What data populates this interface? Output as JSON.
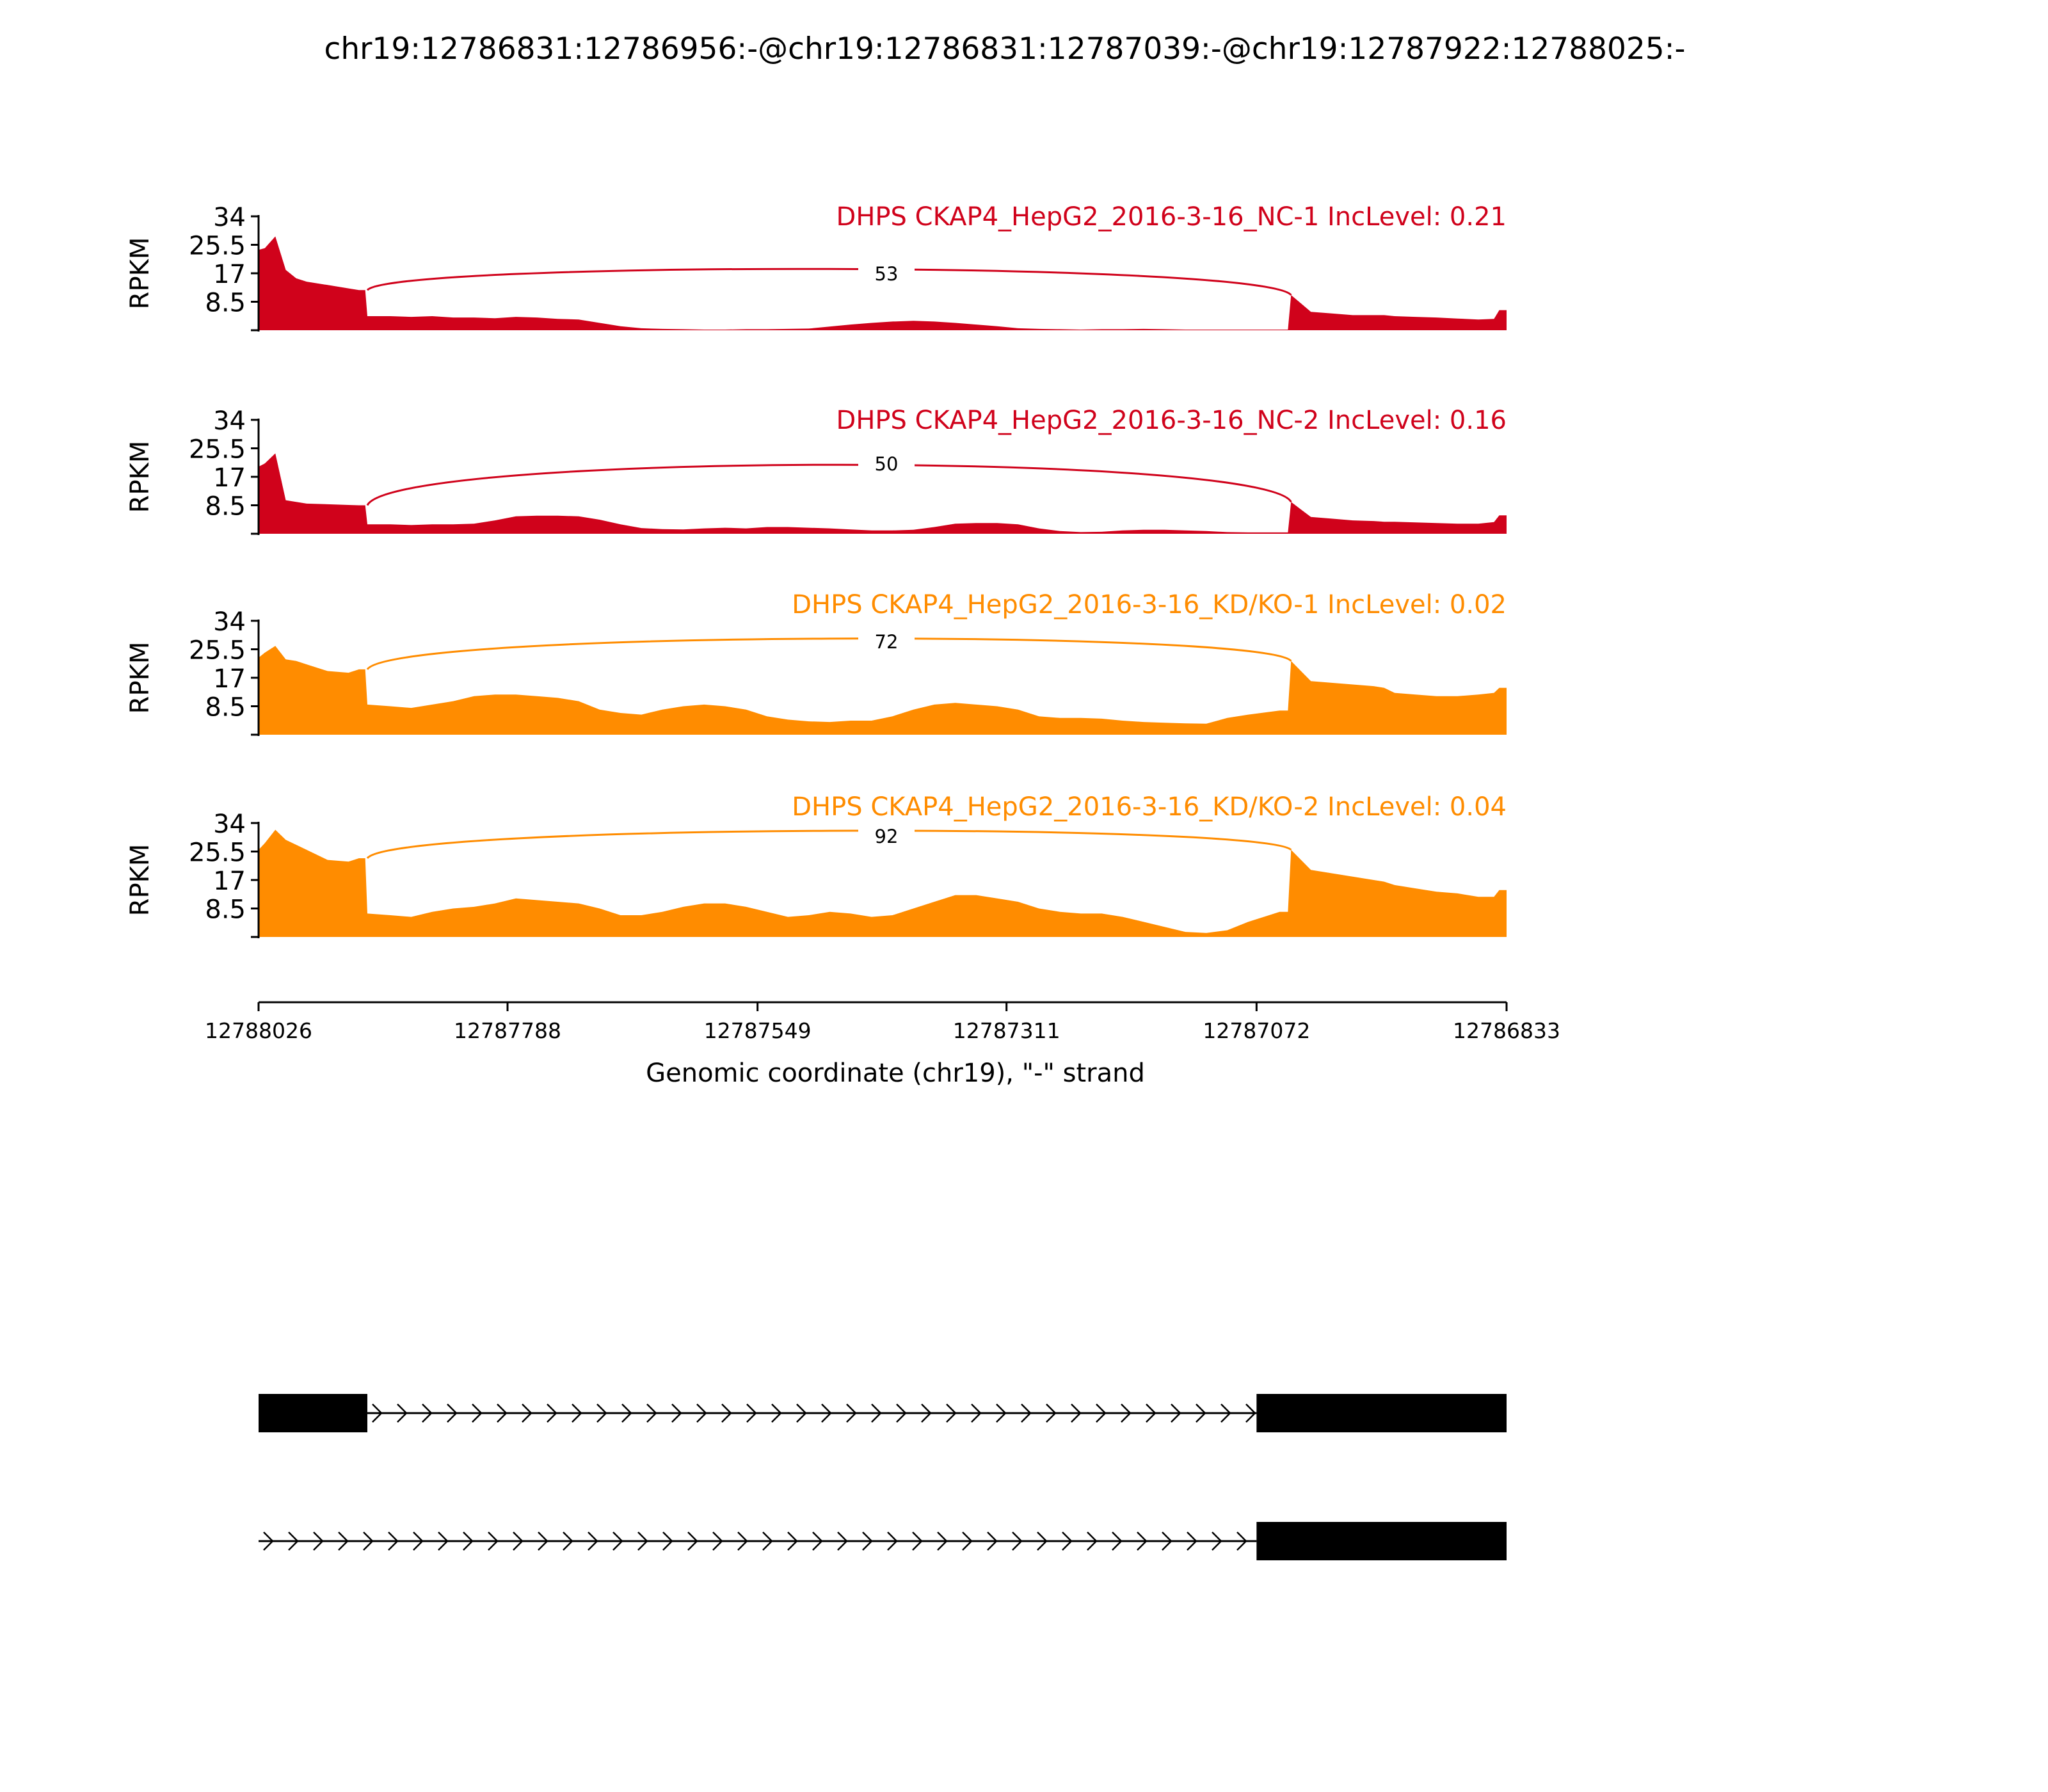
{
  "figure_title": "chr19:12786831:12786956:-@chr19:12786831:12787039:-@chr19:12787922:12788025:-",
  "chart_data": {
    "type": "area",
    "title": "chr19:12786831:12786956:-@chr19:12786831:12787039:-@chr19:12787922:12788025:-",
    "xlabel": "Genomic coordinate (chr19), \"-\" strand",
    "ylabel": "RPKM",
    "xlim": [
      12788026,
      12786833
    ],
    "x_reversed": true,
    "x_ticks": [
      "12788026",
      "12787788",
      "12787549",
      "12787311",
      "12787072",
      "12786833"
    ],
    "ylim": [
      0,
      34
    ],
    "y_ticks": [
      "34",
      "25.5",
      "17",
      "8.5"
    ],
    "grid": false,
    "x": [
      12788026,
      12788020,
      12788010,
      12788000,
      12787990,
      12787980,
      12787960,
      12787940,
      12787930,
      12787924,
      12787922,
      12787900,
      12787880,
      12787860,
      12787840,
      12787820,
      12787800,
      12787780,
      12787760,
      12787740,
      12787720,
      12787700,
      12787680,
      12787660,
      12787640,
      12787620,
      12787600,
      12787580,
      12787560,
      12787540,
      12787520,
      12787500,
      12787480,
      12787460,
      12787440,
      12787420,
      12787400,
      12787380,
      12787360,
      12787340,
      12787320,
      12787300,
      12787280,
      12787260,
      12787240,
      12787220,
      12787200,
      12787180,
      12787160,
      12787140,
      12787120,
      12787100,
      12787080,
      12787060,
      12787050,
      12787042,
      12787039,
      12787020,
      12787000,
      12786980,
      12786960,
      12786950,
      12786940,
      12786920,
      12786900,
      12786880,
      12786860,
      12786845,
      12786840,
      12786833
    ],
    "series": [
      {
        "name": "DHPS CKAP4_HepG2_2016-3-16_NC-1 IncLevel: 0.21",
        "color": "#d0021b",
        "values": [
          24,
          24.5,
          28,
          18,
          15.5,
          14.5,
          13.5,
          12.5,
          12,
          12,
          4.2,
          4.2,
          4,
          4.2,
          3.8,
          3.8,
          3.6,
          4,
          3.8,
          3.4,
          3.2,
          2.2,
          1.2,
          0.6,
          0.4,
          0.3,
          0.2,
          0.2,
          0.3,
          0.3,
          0.4,
          0.5,
          1.1,
          1.7,
          2.2,
          2.6,
          2.8,
          2.6,
          2.2,
          1.7,
          1.2,
          0.6,
          0.4,
          0.3,
          0.2,
          0.3,
          0.3,
          0.4,
          0.3,
          0.2,
          0.2,
          0.2,
          0.2,
          0.2,
          0.2,
          0.2,
          10.5,
          5.5,
          5,
          4.5,
          4.5,
          4.5,
          4.2,
          4,
          3.8,
          3.5,
          3.2,
          3.4,
          6,
          6
        ]
      },
      {
        "name": "DHPS CKAP4_HepG2_2016-3-16_NC-2 IncLevel: 0.16",
        "color": "#d0021b",
        "values": [
          20,
          21,
          24,
          10,
          9.5,
          9,
          8.8,
          8.6,
          8.5,
          8.5,
          2.8,
          2.8,
          2.6,
          2.8,
          2.8,
          3,
          4,
          5.2,
          5.4,
          5.4,
          5.2,
          4.2,
          2.8,
          1.7,
          1.4,
          1.3,
          1.6,
          1.8,
          1.6,
          2,
          2,
          1.8,
          1.6,
          1.3,
          1,
          1,
          1.2,
          2,
          3,
          3.2,
          3.2,
          2.8,
          1.6,
          0.8,
          0.5,
          0.6,
          1,
          1.2,
          1.2,
          1,
          0.8,
          0.5,
          0.4,
          0.4,
          0.4,
          0.4,
          9.5,
          5,
          4.5,
          4,
          3.8,
          3.6,
          3.6,
          3.4,
          3.2,
          3,
          3,
          3.5,
          5.5,
          5.5
        ]
      },
      {
        "name": "DHPS CKAP4_HepG2_2016-3-16_KD/KO-1 IncLevel: 0.02",
        "color": "#ff8c00",
        "values": [
          23,
          24.5,
          26.5,
          22.5,
          22,
          21,
          19,
          18.5,
          19.5,
          19.5,
          9,
          8.5,
          8,
          9,
          10,
          11.5,
          12,
          12,
          11.5,
          11,
          10,
          7.5,
          6.5,
          6,
          7.5,
          8.5,
          9,
          8.5,
          7.5,
          5.5,
          4.5,
          4,
          3.8,
          4.2,
          4.2,
          5.5,
          7.5,
          9,
          9.5,
          9,
          8.5,
          7.5,
          5.5,
          5,
          5,
          4.8,
          4.2,
          3.8,
          3.6,
          3.4,
          3.3,
          5,
          6,
          6.8,
          7.2,
          7.2,
          22,
          16,
          15.5,
          15,
          14.5,
          14,
          12.5,
          12,
          11.5,
          11.5,
          12,
          12.5,
          14,
          14
        ]
      },
      {
        "name": "DHPS CKAP4_HepG2_2016-3-16_KD/KO-2 IncLevel: 0.04",
        "color": "#ff8c00",
        "values": [
          26,
          28,
          32,
          29,
          27.5,
          26,
          23,
          22.5,
          23.5,
          23.5,
          7,
          6.5,
          6,
          7.5,
          8.5,
          9,
          10,
          11.5,
          11,
          10.5,
          10,
          8.5,
          6.5,
          6.5,
          7.5,
          9,
          10,
          10,
          9,
          7.5,
          6,
          6.5,
          7.5,
          7,
          6,
          6.5,
          8.5,
          10.5,
          12.5,
          12.5,
          11.5,
          10.5,
          8.5,
          7.5,
          7,
          7,
          6,
          4.5,
          3,
          1.5,
          1.2,
          2,
          4.5,
          6.5,
          7.5,
          7.5,
          26,
          20,
          19,
          18,
          17,
          16.5,
          15.5,
          14.5,
          13.5,
          13,
          12,
          12,
          14,
          14
        ]
      }
    ],
    "junctions": [
      {
        "track": 0,
        "count": "53",
        "from": 12787922,
        "to": 12787039
      },
      {
        "track": 1,
        "count": "50",
        "from": 12787922,
        "to": 12787039
      },
      {
        "track": 2,
        "count": "72",
        "from": 12787922,
        "to": 12787039
      },
      {
        "track": 3,
        "count": "92",
        "from": 12787922,
        "to": 12787039
      }
    ],
    "gene_models": [
      {
        "exons": [
          [
            12788026,
            12787922
          ],
          [
            12787072,
            12786833
          ]
        ],
        "intron": [
          12787922,
          12787072
        ]
      },
      {
        "exons": [
          [
            12787072,
            12786833
          ]
        ],
        "intron": [
          12788026,
          12787072
        ]
      }
    ]
  }
}
